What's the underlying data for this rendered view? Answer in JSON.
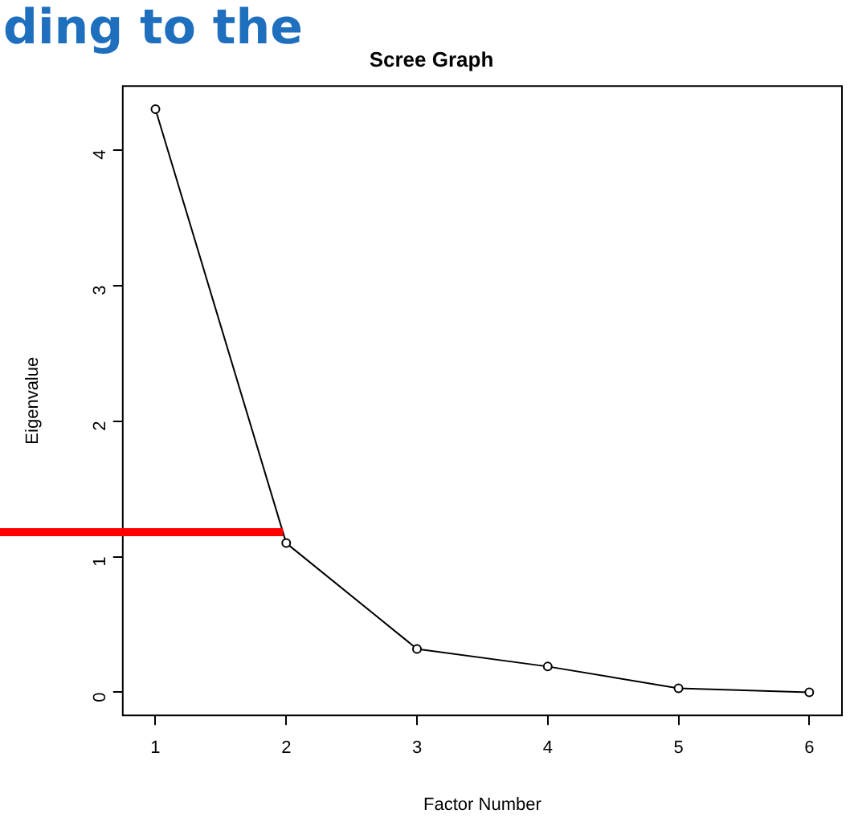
{
  "chart_data": {
    "type": "line",
    "title": "Scree Graph",
    "xlabel": "Factor Number",
    "ylabel": "Eigenvalue",
    "annotations": [
      "ding to the"
    ],
    "x": [
      1,
      2,
      3,
      4,
      5,
      6
    ],
    "series": [
      {
        "color": "#000000",
        "values": [
          4.3,
          1.1,
          0.32,
          0.19,
          0.03,
          0.0
        ]
      }
    ],
    "xlim": [
      0.75,
      6.25
    ],
    "xticks": [
      1,
      2,
      3,
      4,
      5,
      6
    ],
    "ylim": [
      -0.17,
      4.47
    ],
    "yticks": [
      0,
      1,
      2,
      3,
      4
    ],
    "ref_lines": [
      {
        "axis": "y",
        "value": 1.18,
        "color": "#ff0000"
      }
    ],
    "marker": "circle",
    "line_style": "solid",
    "grid": false,
    "legend": false
  }
}
